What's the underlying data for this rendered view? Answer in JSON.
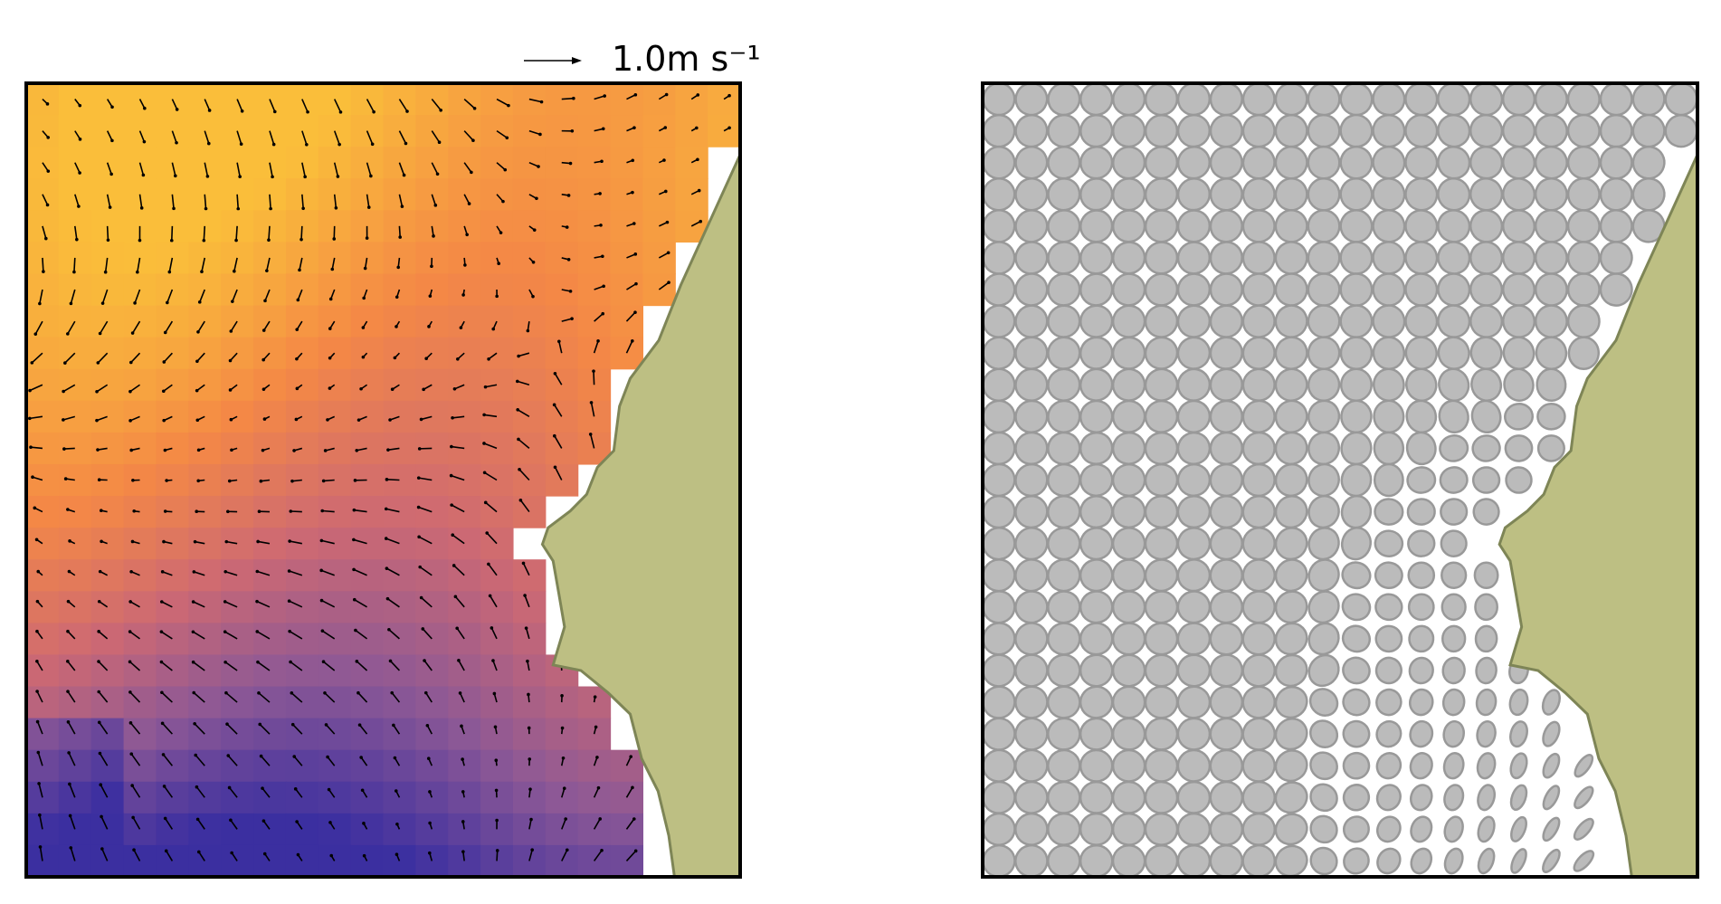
{
  "chart_data": {
    "type": "quiver",
    "key_label": "1.0m s⁻¹"
  }
}
